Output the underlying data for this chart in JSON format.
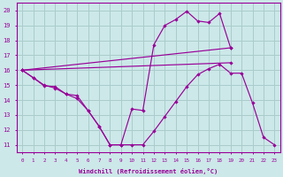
{
  "bg_color": "#cce8e8",
  "grid_color": "#aacccc",
  "line_color": "#990099",
  "xlabel": "Windchill (Refroidissement éolien,°C)",
  "xlim": [
    -0.5,
    23.5
  ],
  "ylim": [
    10.5,
    20.5
  ],
  "yticks": [
    11,
    12,
    13,
    14,
    15,
    16,
    17,
    18,
    19,
    20
  ],
  "xticks": [
    0,
    1,
    2,
    3,
    4,
    5,
    6,
    7,
    8,
    9,
    10,
    11,
    12,
    13,
    14,
    15,
    16,
    17,
    18,
    19,
    20,
    21,
    22,
    23
  ],
  "line1_x": [
    0,
    1,
    2,
    3,
    4,
    5,
    6,
    7,
    8,
    9,
    10,
    11,
    12,
    13,
    14,
    15,
    16,
    17,
    18,
    19
  ],
  "line1_y": [
    16.0,
    15.5,
    15.0,
    14.8,
    14.4,
    14.1,
    13.3,
    12.25,
    11.0,
    11.0,
    13.4,
    13.3,
    17.7,
    19.0,
    19.4,
    19.95,
    19.3,
    19.2,
    19.8,
    17.5
  ],
  "line2_x": [
    0,
    19
  ],
  "line2_y": [
    16.0,
    17.5
  ],
  "line3_x": [
    0,
    19
  ],
  "line3_y": [
    16.0,
    16.5
  ],
  "line4_x": [
    0,
    1,
    2,
    3,
    4,
    5,
    6,
    7,
    8,
    9,
    10,
    11,
    12,
    13,
    14,
    15,
    16,
    17,
    18,
    19,
    20,
    21,
    22,
    23
  ],
  "line4_y": [
    16.0,
    15.5,
    14.95,
    14.9,
    14.4,
    14.3,
    13.3,
    12.25,
    11.0,
    11.0,
    11.0,
    11.0,
    11.9,
    12.9,
    13.9,
    14.9,
    15.7,
    16.1,
    16.4,
    15.8,
    15.8,
    13.8,
    11.5,
    11.0
  ]
}
